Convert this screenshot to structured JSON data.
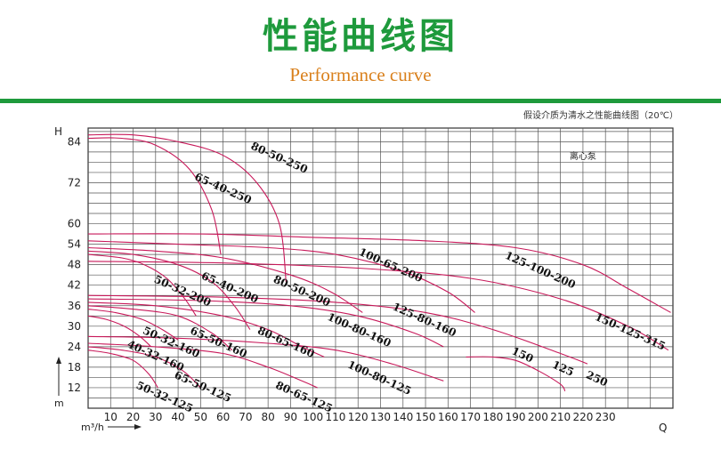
{
  "header": {
    "title_cn": "性能曲线图",
    "title_en": "Performance curve",
    "note": "假设介质为清水之性能曲线图（20℃）"
  },
  "colors": {
    "brand_green": "#1e9a3c",
    "accent_orange": "#d9801c",
    "curve": "#c8195a",
    "grid": "#555555"
  },
  "chart_data": {
    "type": "line",
    "title": "",
    "xlabel": "Q",
    "x_unit": "m³/h",
    "ylabel": "H",
    "y_unit": "m",
    "xlim": [
      0,
      260
    ],
    "ylim": [
      6,
      88
    ],
    "grid": true,
    "x_ticks": [
      10,
      20,
      30,
      40,
      50,
      60,
      70,
      80,
      90,
      100,
      110,
      120,
      130,
      140,
      150,
      160,
      170,
      180,
      190,
      200,
      210,
      220,
      230
    ],
    "y_ticks": [
      12,
      18,
      24,
      30,
      36,
      42,
      48,
      54,
      60,
      72,
      84
    ],
    "annotation": "离心泵",
    "series": [
      {
        "name": "80-50-250",
        "points": [
          [
            0,
            86
          ],
          [
            20,
            86
          ],
          [
            40,
            84
          ],
          [
            60,
            80
          ],
          [
            75,
            72
          ],
          [
            85,
            60
          ],
          [
            88,
            43
          ]
        ]
      },
      {
        "name": "65-40-250",
        "points": [
          [
            0,
            85
          ],
          [
            15,
            85
          ],
          [
            30,
            83
          ],
          [
            45,
            76
          ],
          [
            55,
            64
          ],
          [
            59,
            51
          ]
        ]
      },
      {
        "name": "125-100-200",
        "points": [
          [
            0,
            57
          ],
          [
            50,
            57
          ],
          [
            100,
            56
          ],
          [
            150,
            55
          ],
          [
            190,
            53
          ],
          [
            220,
            48
          ],
          [
            240,
            41
          ],
          [
            259,
            34
          ]
        ]
      },
      {
        "name": "100-65-200",
        "points": [
          [
            0,
            55
          ],
          [
            40,
            54
          ],
          [
            80,
            53
          ],
          [
            110,
            51
          ],
          [
            140,
            46
          ],
          [
            160,
            40
          ],
          [
            172,
            34
          ]
        ]
      },
      {
        "name": "80-50-200",
        "points": [
          [
            0,
            53
          ],
          [
            30,
            52
          ],
          [
            60,
            50
          ],
          [
            90,
            45
          ],
          [
            108,
            40
          ],
          [
            122,
            34
          ]
        ]
      },
      {
        "name": "65-40-200",
        "points": [
          [
            0,
            52
          ],
          [
            20,
            51
          ],
          [
            40,
            48
          ],
          [
            55,
            43
          ],
          [
            65,
            36
          ],
          [
            72,
            29
          ]
        ]
      },
      {
        "name": "50-32-200",
        "points": [
          [
            0,
            51
          ],
          [
            15,
            50
          ],
          [
            25,
            48
          ],
          [
            35,
            44
          ],
          [
            43,
            38
          ],
          [
            48,
            33
          ]
        ]
      },
      {
        "name": "150-125-315",
        "points": [
          [
            0,
            49
          ],
          [
            60,
            48.5
          ],
          [
            120,
            47
          ],
          [
            170,
            44
          ],
          [
            210,
            38
          ],
          [
            240,
            30
          ],
          [
            258,
            23
          ]
        ]
      },
      {
        "name": "125-80-160",
        "points": [
          [
            0,
            39
          ],
          [
            60,
            38.5
          ],
          [
            110,
            37
          ],
          [
            150,
            34
          ],
          [
            180,
            29
          ],
          [
            210,
            22
          ],
          [
            222,
            19
          ]
        ]
      },
      {
        "name": "100-80-160",
        "points": [
          [
            0,
            38
          ],
          [
            50,
            37.5
          ],
          [
            90,
            36
          ],
          [
            120,
            33
          ],
          [
            145,
            28
          ],
          [
            158,
            24
          ]
        ]
      },
      {
        "name": "80-65-160",
        "points": [
          [
            0,
            37
          ],
          [
            30,
            36
          ],
          [
            60,
            33
          ],
          [
            80,
            29
          ],
          [
            95,
            24
          ],
          [
            105,
            21
          ]
        ]
      },
      {
        "name": "65-50-160",
        "points": [
          [
            0,
            36
          ],
          [
            20,
            35
          ],
          [
            40,
            33
          ],
          [
            55,
            28
          ],
          [
            64,
            23
          ]
        ]
      },
      {
        "name": "50-32-160",
        "points": [
          [
            0,
            35
          ],
          [
            12,
            34
          ],
          [
            24,
            32
          ],
          [
            33,
            29
          ],
          [
            40,
            26
          ]
        ]
      },
      {
        "name": "40-32-160",
        "points": [
          [
            0,
            33
          ],
          [
            8,
            32
          ],
          [
            16,
            30
          ],
          [
            23,
            27
          ],
          [
            28,
            24
          ]
        ]
      },
      {
        "name": "150-125-250",
        "points": [
          [
            168,
            21
          ],
          [
            180,
            21
          ],
          [
            190,
            20
          ],
          [
            200,
            17
          ],
          [
            210,
            13
          ],
          [
            212,
            11
          ]
        ]
      },
      {
        "name": "100-80-125",
        "points": [
          [
            0,
            27
          ],
          [
            40,
            26.5
          ],
          [
            80,
            25
          ],
          [
            110,
            23
          ],
          [
            135,
            19
          ],
          [
            158,
            14
          ]
        ]
      },
      {
        "name": "80-65-125",
        "points": [
          [
            0,
            25
          ],
          [
            30,
            24
          ],
          [
            60,
            22
          ],
          [
            80,
            18
          ],
          [
            95,
            14
          ],
          [
            102,
            12
          ]
        ]
      },
      {
        "name": "65-50-125",
        "points": [
          [
            0,
            24
          ],
          [
            15,
            23
          ],
          [
            30,
            21
          ],
          [
            42,
            17
          ],
          [
            50,
            12
          ]
        ]
      },
      {
        "name": "50-32-125",
        "points": [
          [
            0,
            23
          ],
          [
            10,
            22
          ],
          [
            20,
            20
          ],
          [
            27,
            16
          ],
          [
            31,
            12
          ]
        ]
      }
    ],
    "labels": [
      {
        "text": "80-50-250",
        "x": 72,
        "y": 82
      },
      {
        "text": "65-40-250",
        "x": 47,
        "y": 73
      },
      {
        "text": "125-100-200",
        "x": 185,
        "y": 50
      },
      {
        "text": "100-65-200",
        "x": 120,
        "y": 51
      },
      {
        "text": "80-50-200",
        "x": 82,
        "y": 43
      },
      {
        "text": "65-40-200",
        "x": 50,
        "y": 44
      },
      {
        "text": "50-32-200",
        "x": 29,
        "y": 43
      },
      {
        "text": "150-125-315",
        "x": 225,
        "y": 32
      },
      {
        "text": "125-80-160",
        "x": 135,
        "y": 35
      },
      {
        "text": "100-80-160",
        "x": 106,
        "y": 32
      },
      {
        "text": "80-65-160",
        "x": 75,
        "y": 28
      },
      {
        "text": "65-50-160",
        "x": 45,
        "y": 28
      },
      {
        "text": "50-32-160",
        "x": 24,
        "y": 28
      },
      {
        "text": "40-32-160",
        "x": 17,
        "y": 24
      },
      {
        "text": "150",
        "x": 188,
        "y": 22
      },
      {
        "text": "125",
        "x": 206,
        "y": 18
      },
      {
        "text": "250",
        "x": 221,
        "y": 15
      },
      {
        "text": "100-80-125",
        "x": 115,
        "y": 18
      },
      {
        "text": "80-65-125",
        "x": 83,
        "y": 12
      },
      {
        "text": "65-50-125",
        "x": 38,
        "y": 15
      },
      {
        "text": "50-32-125",
        "x": 21,
        "y": 12
      }
    ]
  }
}
